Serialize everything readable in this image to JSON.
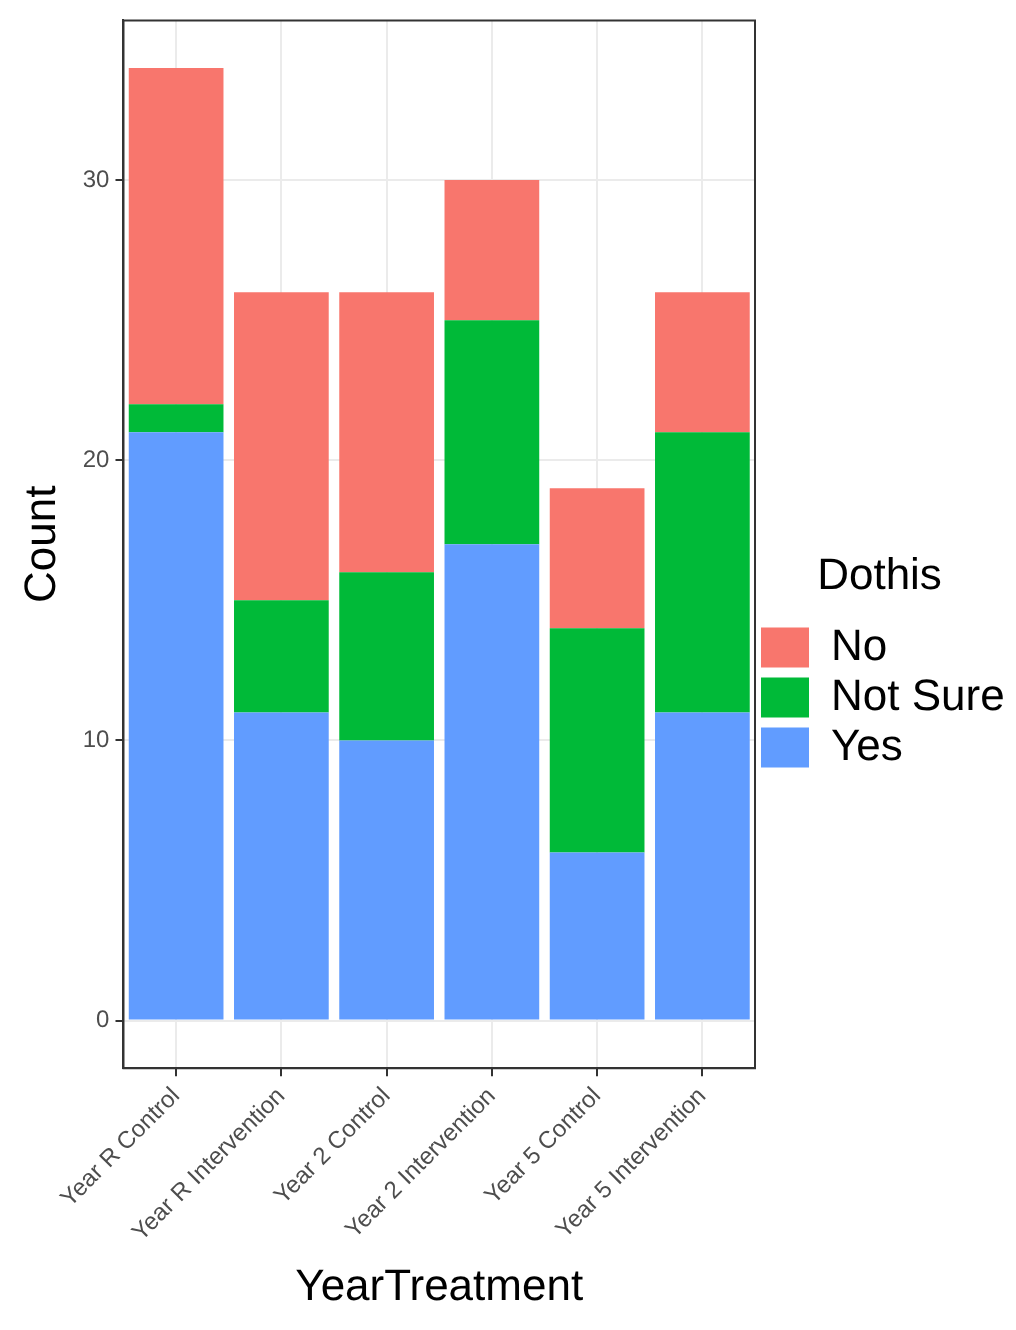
{
  "chart_data": {
    "type": "bar",
    "xlabel": "YearTreatment",
    "ylabel": "Count",
    "legend_title": "Dothis",
    "categories": [
      "Year R Control",
      "Year R Intervention",
      "Year 2 Control",
      "Year 2 Intervention",
      "Year 5 Control",
      "Year 5 Intervention"
    ],
    "stacked": true,
    "series": [
      {
        "name": "Yes",
        "color": "#619cff",
        "values": [
          21,
          11,
          10,
          17,
          6,
          11
        ]
      },
      {
        "name": "Not Sure",
        "color": "#00ba38",
        "values": [
          1,
          4,
          6,
          8,
          8,
          10
        ]
      },
      {
        "name": "No",
        "color": "#f8766d",
        "values": [
          12,
          11,
          10,
          5,
          5,
          5
        ]
      }
    ],
    "ylim": [
      -1.7,
      35.7
    ],
    "yticks": [
      0,
      10,
      20,
      30
    ],
    "grid": true,
    "legend": "right"
  }
}
